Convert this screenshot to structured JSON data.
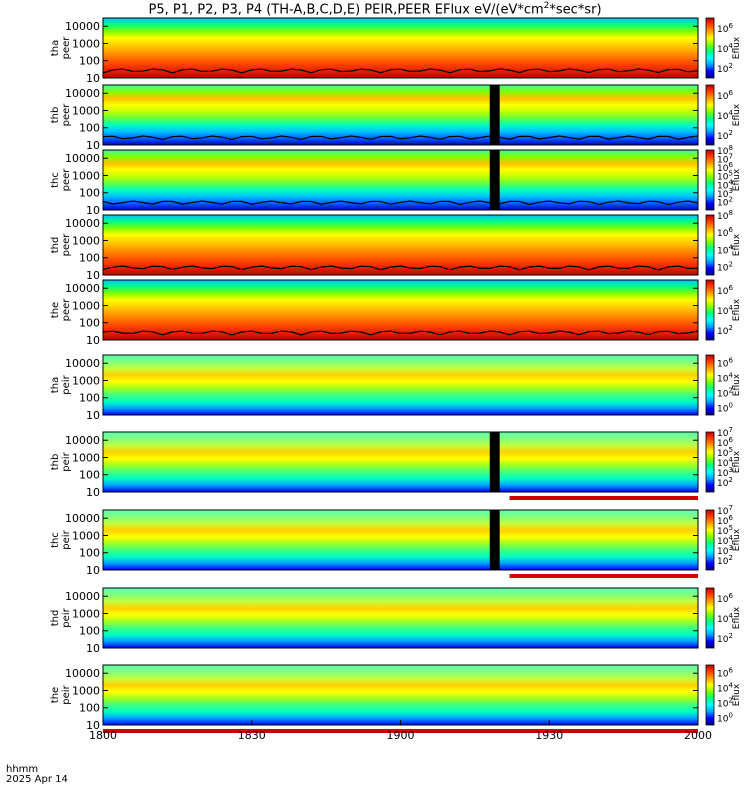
{
  "title": {
    "text": "P5, P1, P2, P3, P4 (TH-A,B,C,D,E) PEIR,PEER EFlux eV/(eV*cm",
    "sup": "2",
    "suffix": "*sec*sr)"
  },
  "time_axis": {
    "label_line1": "hhmm",
    "label_line2": "2025 Apr 14",
    "ticks": [
      "1800",
      "1830",
      "1900",
      "1930",
      "2000"
    ],
    "tick_minutes": [
      0,
      30,
      60,
      90,
      120
    ],
    "range_minutes": [
      0,
      120
    ]
  },
  "colorbar_label": "Eflux",
  "colormap": [
    "#000080",
    "#0000ff",
    "#00a0ff",
    "#00ffff",
    "#00ff80",
    "#80ff00",
    "#ffff00",
    "#ffa000",
    "#ff4000",
    "#c00000"
  ],
  "chart_data": [
    {
      "type": "heatmap",
      "probe": "tha",
      "species": "peer",
      "ylabel_top": "tha",
      "ylabel_bottom": "peer",
      "ylog": true,
      "ylim": [
        10,
        30000
      ],
      "yticks": [
        "10",
        "100",
        "1000",
        "10000"
      ],
      "cbar_ticks": [
        "10^2",
        "10^4",
        "10^6"
      ],
      "cbar_range": [
        1,
        7
      ],
      "hot": true,
      "curve": true
    },
    {
      "type": "heatmap",
      "probe": "thb",
      "species": "peer",
      "ylabel_top": "thb",
      "ylabel_bottom": "peer",
      "ylog": true,
      "ylim": [
        10,
        30000
      ],
      "yticks": [
        "10",
        "100",
        "1000",
        "10000"
      ],
      "cbar_ticks": [
        "10^2",
        "10^4",
        "10^6"
      ],
      "cbar_range": [
        1,
        7
      ],
      "hot": false,
      "curve": true,
      "gap": [
        78,
        80
      ]
    },
    {
      "type": "heatmap",
      "probe": "thc",
      "species": "peer",
      "ylabel_top": "thc",
      "ylabel_bottom": "peer",
      "ylog": true,
      "ylim": [
        10,
        30000
      ],
      "yticks": [
        "10",
        "100",
        "1000",
        "10000"
      ],
      "cbar_ticks": [
        "10^2",
        "10^3",
        "10^4",
        "10^5",
        "10^6",
        "10^7",
        "10^8"
      ],
      "cbar_range": [
        1,
        8
      ],
      "hot": false,
      "curve": true,
      "gap": [
        78,
        80
      ]
    },
    {
      "type": "heatmap",
      "probe": "thd",
      "species": "peer",
      "ylabel_top": "thd",
      "ylabel_bottom": "peer",
      "ylog": true,
      "ylim": [
        10,
        30000
      ],
      "yticks": [
        "10",
        "100",
        "1000",
        "10000"
      ],
      "cbar_ticks": [
        "10^2",
        "10^4",
        "10^6",
        "10^8"
      ],
      "cbar_range": [
        1,
        8
      ],
      "hot": true,
      "curve": true
    },
    {
      "type": "heatmap",
      "probe": "the",
      "species": "peer",
      "ylabel_top": "the",
      "ylabel_bottom": "peer",
      "ylog": true,
      "ylim": [
        10,
        30000
      ],
      "yticks": [
        "10",
        "100",
        "1000",
        "10000"
      ],
      "cbar_ticks": [
        "10^2",
        "10^4",
        "10^6"
      ],
      "cbar_range": [
        1,
        7
      ],
      "hot": true,
      "curve": true
    },
    {
      "type": "heatmap",
      "probe": "tha",
      "species": "peir",
      "ylabel_top": "tha",
      "ylabel_bottom": "peir",
      "ylog": true,
      "ylim": [
        10,
        30000
      ],
      "yticks": [
        "10",
        "100",
        "1000",
        "10000"
      ],
      "cbar_ticks": [
        "10^0",
        "10^2",
        "10^4",
        "10^6"
      ],
      "cbar_range": [
        -1,
        7
      ],
      "hot": false,
      "curve": false
    },
    {
      "type": "heatmap",
      "probe": "thb",
      "species": "peir",
      "ylabel_top": "thb",
      "ylabel_bottom": "peir",
      "ylog": true,
      "ylim": [
        10,
        30000
      ],
      "yticks": [
        "10",
        "100",
        "1000",
        "10000"
      ],
      "cbar_ticks": [
        "10^2",
        "10^3",
        "10^4",
        "10^5",
        "10^6",
        "10^7"
      ],
      "cbar_range": [
        1,
        7
      ],
      "hot": false,
      "curve": false,
      "gap": [
        78,
        80
      ],
      "red_bar": [
        82,
        120
      ]
    },
    {
      "type": "heatmap",
      "probe": "thc",
      "species": "peir",
      "ylabel_top": "thc",
      "ylabel_bottom": "peir",
      "ylog": true,
      "ylim": [
        10,
        30000
      ],
      "yticks": [
        "10",
        "100",
        "1000",
        "10000"
      ],
      "cbar_ticks": [
        "10^2",
        "10^3",
        "10^4",
        "10^5",
        "10^6",
        "10^7"
      ],
      "cbar_range": [
        1,
        7
      ],
      "hot": false,
      "curve": false,
      "gap": [
        78,
        80
      ],
      "red_bar": [
        82,
        120
      ]
    },
    {
      "type": "heatmap",
      "probe": "thd",
      "species": "peir",
      "ylabel_top": "thd",
      "ylabel_bottom": "peir",
      "ylog": true,
      "ylim": [
        10,
        30000
      ],
      "yticks": [
        "10",
        "100",
        "1000",
        "10000"
      ],
      "cbar_ticks": [
        "10^2",
        "10^4",
        "10^6"
      ],
      "cbar_range": [
        1,
        7
      ],
      "hot": false,
      "curve": false
    },
    {
      "type": "heatmap",
      "probe": "the",
      "species": "peir",
      "ylabel_top": "the",
      "ylabel_bottom": "peir",
      "ylog": true,
      "ylim": [
        10,
        30000
      ],
      "yticks": [
        "10",
        "100",
        "1000",
        "10000"
      ],
      "cbar_ticks": [
        "10^0",
        "10^2",
        "10^4",
        "10^6"
      ],
      "cbar_range": [
        -1,
        7
      ],
      "hot": false,
      "curve": false,
      "red_bar": [
        0,
        120
      ]
    }
  ]
}
